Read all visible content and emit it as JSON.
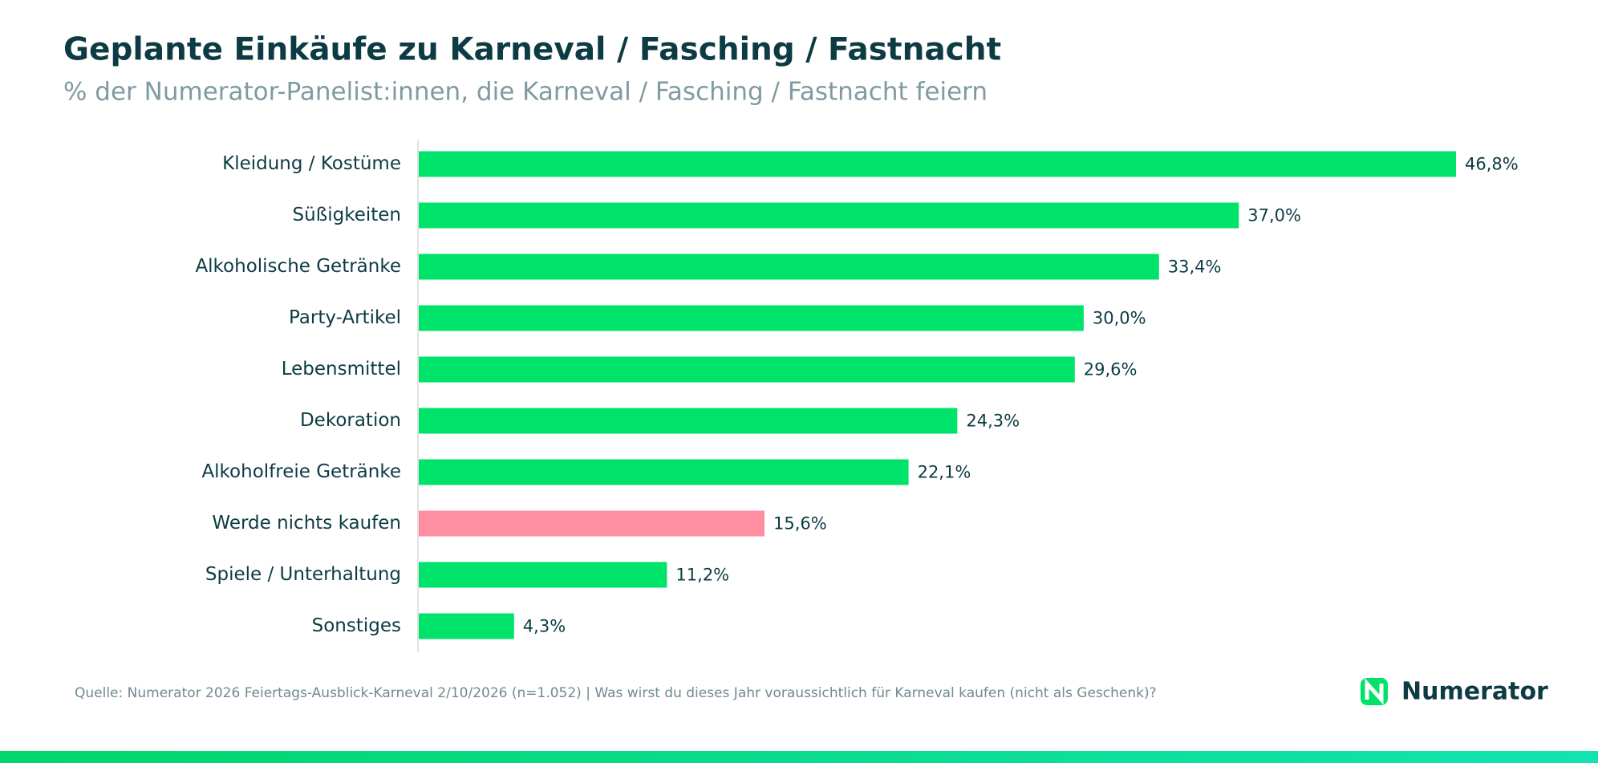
{
  "chart_data": {
    "type": "hbar",
    "title": "Geplante Einkäufe zu Karneval / Fasching / Fastnacht",
    "subtitle": "% der Numerator-Panelist:innen, die Karneval / Fasching / Fastnacht feiern",
    "categories": [
      "Kleidung / Kostüme",
      "Süßigkeiten",
      "Alkoholische Getränke",
      "Party-Artikel",
      "Lebensmittel",
      "Dekoration",
      "Alkoholfreie Getränke",
      "Werde nichts kaufen",
      "Spiele / Unterhaltung",
      "Sonstiges"
    ],
    "values": [
      46.8,
      37.0,
      33.4,
      30.0,
      29.6,
      24.3,
      22.1,
      15.6,
      11.2,
      4.3
    ],
    "value_labels": [
      "46,8%",
      "37,0%",
      "33,4%",
      "30,0%",
      "29,6%",
      "24,3%",
      "22,1%",
      "15,6%",
      "11,2%",
      "4,3%"
    ],
    "colors": [
      "#00e36b",
      "#00e36b",
      "#00e36b",
      "#00e36b",
      "#00e36b",
      "#00e36b",
      "#00e36b",
      "#ff8fa0",
      "#00e36b",
      "#00e36b"
    ],
    "source": "Quelle: Numerator 2026 Feiertags-Ausblick-Karneval 2/10/2026 (n=1.052) | Was wirst du dieses Jahr voraussichtlich für Karneval kaufen (nicht als Geschenk)?",
    "logo": "Numerator"
  }
}
